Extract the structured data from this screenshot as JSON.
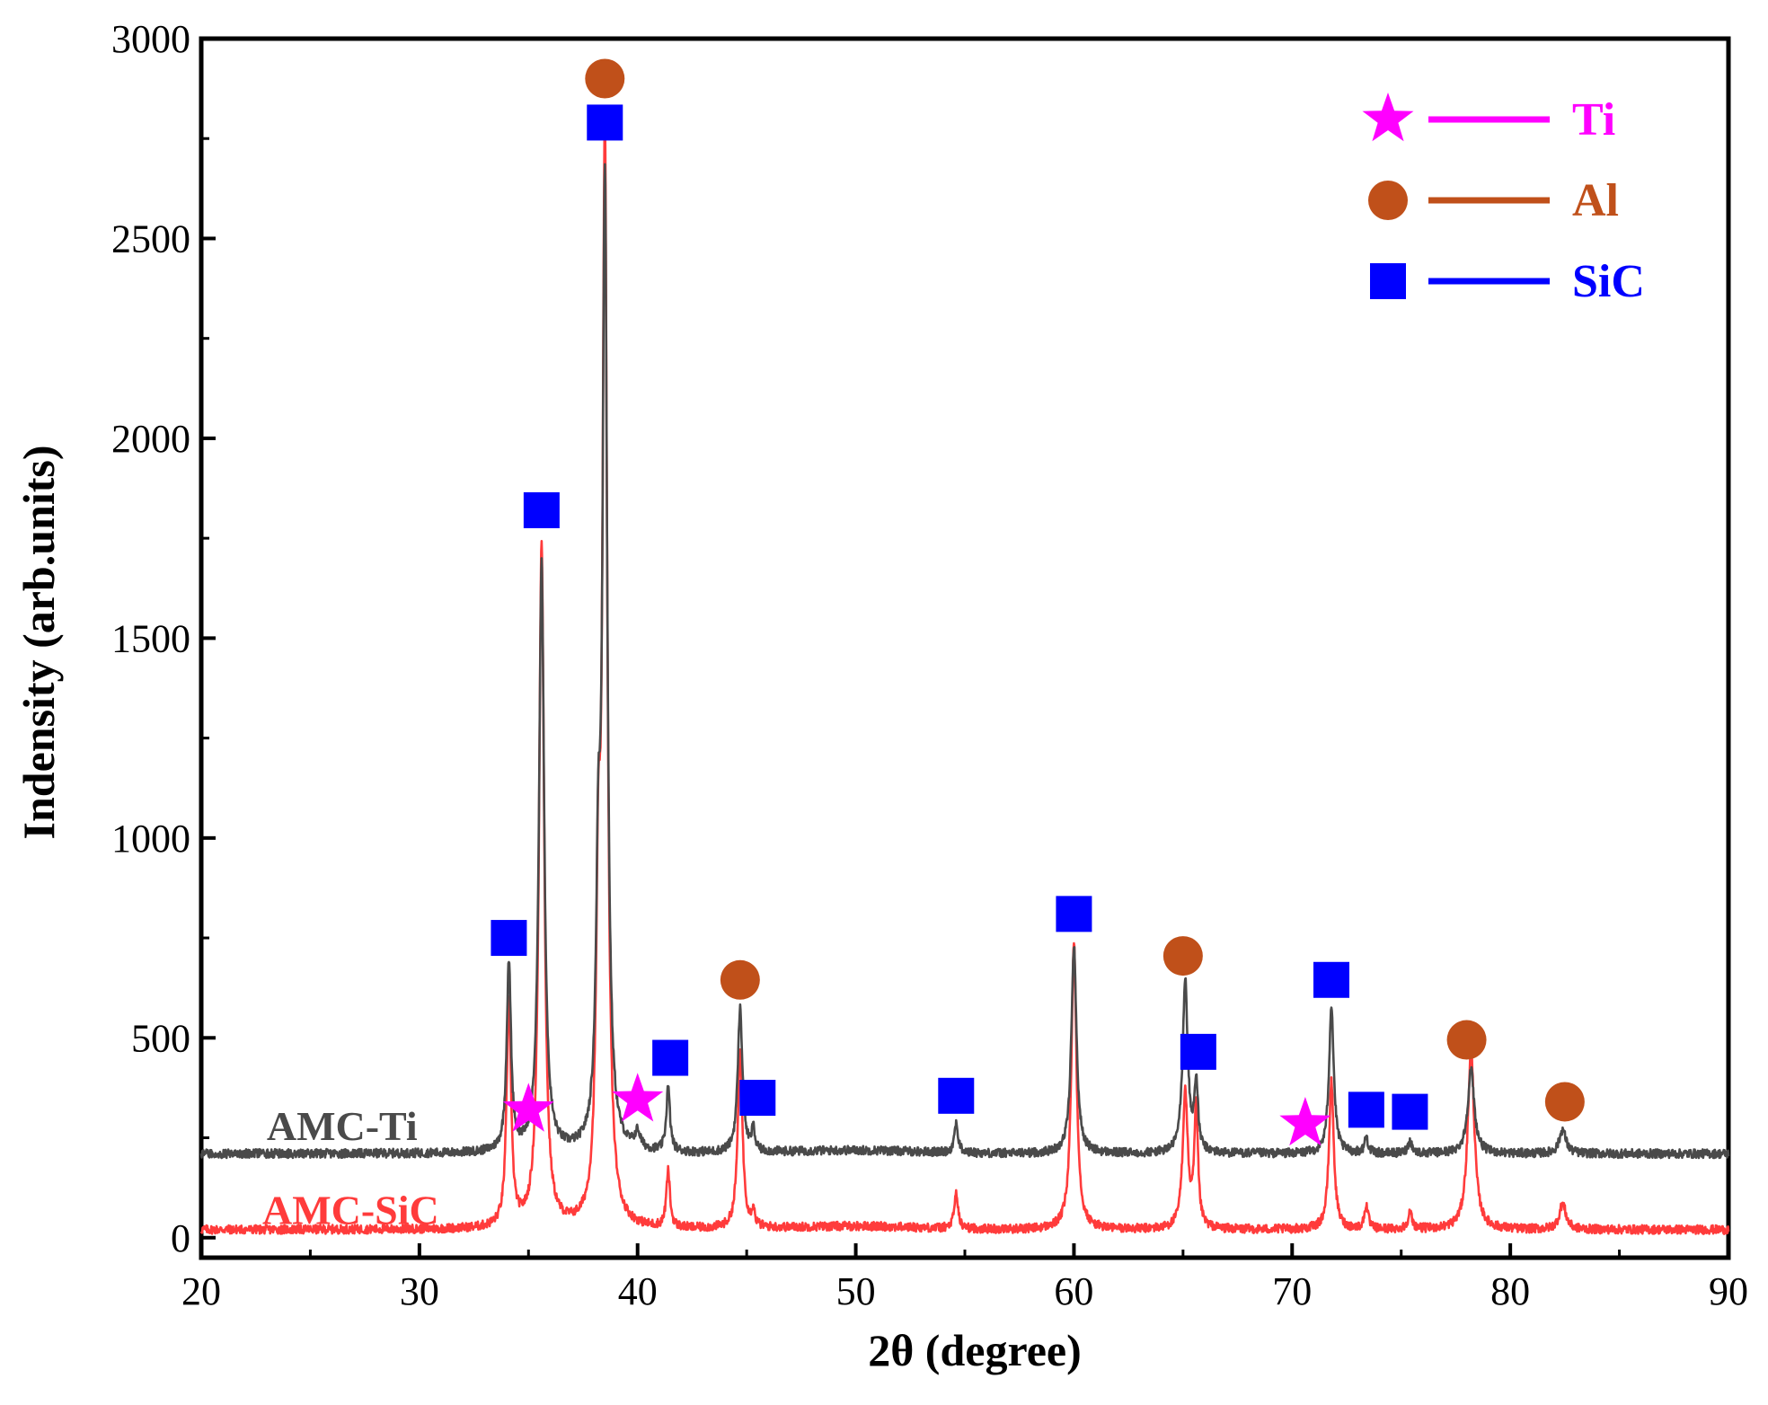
{
  "chart_data": {
    "type": "line",
    "title": "",
    "xlabel": "2θ (degree)",
    "ylabel": "Indensity (arb.units)",
    "xlim": [
      20,
      90
    ],
    "ylim": [
      -50,
      3000
    ],
    "xticks": [
      20,
      30,
      40,
      50,
      60,
      70,
      80,
      90
    ],
    "yticks": [
      0,
      500,
      1000,
      1500,
      2000,
      2500,
      3000
    ],
    "xtick_labels": [
      "20",
      "30",
      "40",
      "50",
      "60",
      "70",
      "80",
      "90"
    ],
    "ytick_labels": [
      "0",
      "500",
      "1000",
      "1500",
      "2000",
      "2500",
      "3000"
    ],
    "grid": false,
    "legend_position": "top-right",
    "legend": [
      {
        "label": "Ti",
        "marker": "star",
        "color": "#ff00ff"
      },
      {
        "label": "Al",
        "marker": "circle",
        "color": "#c0501a"
      },
      {
        "label": "SiC",
        "marker": "square",
        "color": "#0000ff"
      }
    ],
    "series": [
      {
        "name": "AMC-SiC",
        "label": "AMC-SiC",
        "color": "#ff3b3b",
        "baseline": 20,
        "peaks": [
          {
            "x": 34.1,
            "h": 570,
            "w": 0.12
          },
          {
            "x": 35.6,
            "h": 1720,
            "w": 0.14
          },
          {
            "x": 38.2,
            "h": 700,
            "w": 0.12
          },
          {
            "x": 38.5,
            "h": 2680,
            "w": 0.13
          },
          {
            "x": 41.4,
            "h": 140,
            "w": 0.1
          },
          {
            "x": 44.7,
            "h": 440,
            "w": 0.13
          },
          {
            "x": 45.3,
            "h": 40,
            "w": 0.08
          },
          {
            "x": 54.6,
            "h": 90,
            "w": 0.1
          },
          {
            "x": 60.0,
            "h": 720,
            "w": 0.14
          },
          {
            "x": 65.1,
            "h": 340,
            "w": 0.14
          },
          {
            "x": 65.6,
            "h": 300,
            "w": 0.1
          },
          {
            "x": 71.8,
            "h": 370,
            "w": 0.13
          },
          {
            "x": 73.4,
            "h": 60,
            "w": 0.1
          },
          {
            "x": 75.4,
            "h": 40,
            "w": 0.12
          },
          {
            "x": 78.2,
            "h": 450,
            "w": 0.18
          },
          {
            "x": 82.4,
            "h": 65,
            "w": 0.18
          }
        ]
      },
      {
        "name": "AMC-Ti",
        "label": "AMC-Ti",
        "color": "#4a4a4a",
        "baseline": 210,
        "peaks": [
          {
            "x": 34.1,
            "h": 470,
            "w": 0.12
          },
          {
            "x": 35.6,
            "h": 1480,
            "w": 0.14
          },
          {
            "x": 38.2,
            "h": 580,
            "w": 0.12
          },
          {
            "x": 38.5,
            "h": 2400,
            "w": 0.13
          },
          {
            "x": 40.0,
            "h": 40,
            "w": 0.15
          },
          {
            "x": 41.4,
            "h": 160,
            "w": 0.1
          },
          {
            "x": 44.7,
            "h": 360,
            "w": 0.13
          },
          {
            "x": 45.3,
            "h": 55,
            "w": 0.08
          },
          {
            "x": 54.6,
            "h": 75,
            "w": 0.1
          },
          {
            "x": 60.0,
            "h": 520,
            "w": 0.14
          },
          {
            "x": 65.1,
            "h": 430,
            "w": 0.14
          },
          {
            "x": 65.6,
            "h": 170,
            "w": 0.1
          },
          {
            "x": 71.8,
            "h": 370,
            "w": 0.13
          },
          {
            "x": 73.4,
            "h": 40,
            "w": 0.1
          },
          {
            "x": 75.4,
            "h": 30,
            "w": 0.12
          },
          {
            "x": 78.2,
            "h": 210,
            "w": 0.18
          },
          {
            "x": 82.4,
            "h": 60,
            "w": 0.18
          }
        ]
      }
    ],
    "annotations": [
      {
        "phase": "SiC",
        "x": 34.1,
        "y": 750
      },
      {
        "phase": "Ti",
        "x": 35.0,
        "y": 320
      },
      {
        "phase": "SiC",
        "x": 35.6,
        "y": 1820
      },
      {
        "phase": "SiC",
        "x": 38.5,
        "y": 2790
      },
      {
        "phase": "Al",
        "x": 38.5,
        "y": 2900
      },
      {
        "phase": "Ti",
        "x": 40.0,
        "y": 345
      },
      {
        "phase": "SiC",
        "x": 41.5,
        "y": 450
      },
      {
        "phase": "Al",
        "x": 44.7,
        "y": 645
      },
      {
        "phase": "SiC",
        "x": 45.5,
        "y": 350
      },
      {
        "phase": "SiC",
        "x": 54.6,
        "y": 355
      },
      {
        "phase": "SiC",
        "x": 60.0,
        "y": 810
      },
      {
        "phase": "Al",
        "x": 65.0,
        "y": 705
      },
      {
        "phase": "SiC",
        "x": 65.7,
        "y": 465
      },
      {
        "phase": "Ti",
        "x": 70.6,
        "y": 285
      },
      {
        "phase": "SiC",
        "x": 71.8,
        "y": 645
      },
      {
        "phase": "SiC",
        "x": 73.4,
        "y": 320
      },
      {
        "phase": "SiC",
        "x": 75.4,
        "y": 315
      },
      {
        "phase": "Al",
        "x": 78.0,
        "y": 495
      },
      {
        "phase": "Al",
        "x": 82.5,
        "y": 340
      }
    ],
    "series_labels": [
      {
        "text": "AMC-Ti",
        "x": 23.0,
        "y": 280,
        "color": "#4a4a4a"
      },
      {
        "text": "AMC-SiC",
        "x": 22.8,
        "y": 70,
        "color": "#ff3b3b"
      }
    ]
  }
}
